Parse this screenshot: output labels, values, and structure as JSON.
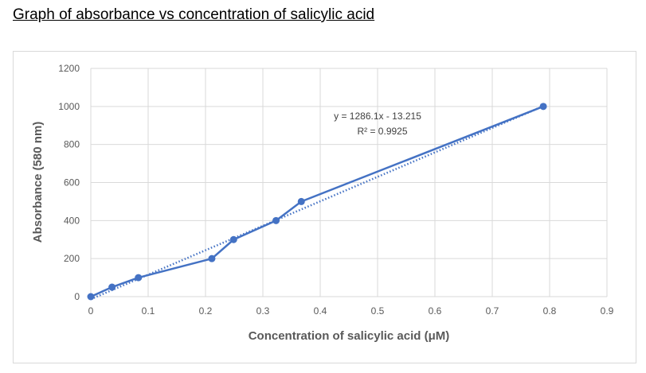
{
  "page": {
    "title": "Graph of absorbance vs concentration of salicylic acid"
  },
  "chart_data": {
    "type": "scatter",
    "title": "",
    "xlabel": "Concentration of salicylic acid (μM)",
    "ylabel": "Absorbance (580 nm)",
    "xlim": [
      0,
      0.9
    ],
    "ylim": [
      0,
      1200
    ],
    "xticks": [
      "0",
      "0.1",
      "0.2",
      "0.3",
      "0.4",
      "0.5",
      "0.6",
      "0.7",
      "0.8",
      "0.9"
    ],
    "yticks": [
      "0",
      "200",
      "400",
      "600",
      "800",
      "1000",
      "1200"
    ],
    "grid": true,
    "legend": "none",
    "series": [
      {
        "color": "#4472c4",
        "style": "line-with-markers",
        "x": [
          0,
          0.037,
          0.083,
          0.211,
          0.249,
          0.323,
          0.367,
          0.789
        ],
        "y": [
          0,
          50,
          100,
          200,
          300,
          400,
          500,
          1000
        ]
      }
    ],
    "trendline": {
      "type": "linear",
      "slope": 1286.1,
      "intercept": -13.215,
      "style": "dotted",
      "color": "#4472c4",
      "equation": "y = 1286.1x - 13.215",
      "r_squared": "R² = 0.9925"
    }
  }
}
